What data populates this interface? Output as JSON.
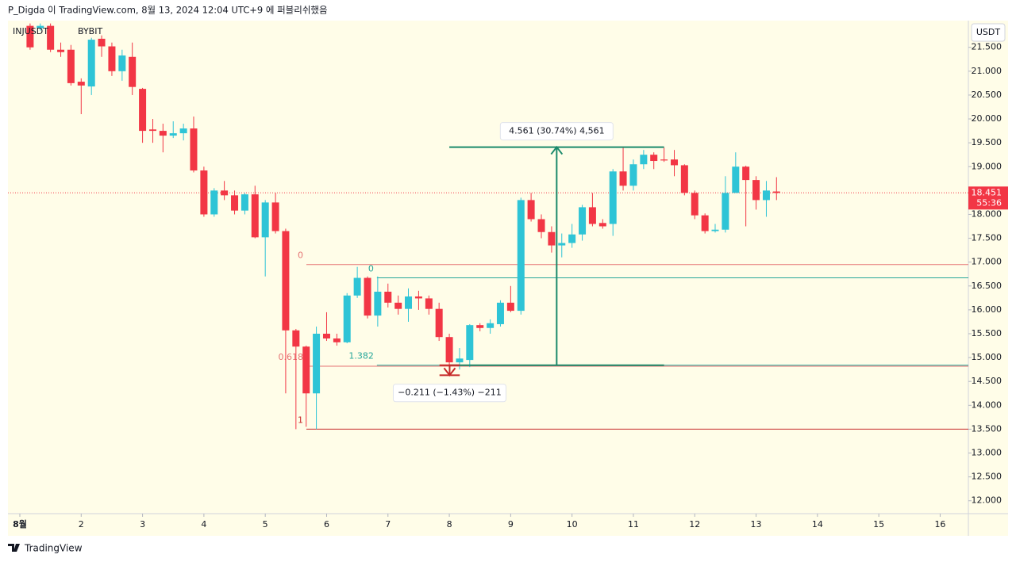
{
  "chart_data": {
    "type": "candlestick",
    "header": "P_Digda 이 TradingView.com, 8월 13, 2024 12:04 UTC+9 에 퍼블리쉬했음",
    "symbol": "INJUSDT",
    "exchange": "BYBIT",
    "currency": "USDT",
    "last_price": {
      "value": 18.451,
      "label": "18.451"
    },
    "countdown": "55:36",
    "brand": "TradingView",
    "up_color": "#2ec4d6",
    "down_color": "#f23645",
    "xlim": [
      0.806,
      16.46
    ],
    "xticks": [
      {
        "value": 1,
        "label": "8월"
      },
      2,
      3,
      4,
      5,
      6,
      7,
      8,
      9,
      10,
      11,
      12,
      13,
      14,
      15,
      16
    ],
    "ylim": [
      11.73,
      22.06
    ],
    "yticks": [
      {
        "value": 12,
        "label": "12.000"
      },
      {
        "value": 12.5,
        "label": "12.500"
      },
      {
        "value": 13,
        "label": "13.000"
      },
      {
        "value": 13.5,
        "label": "13.500"
      },
      {
        "value": 14,
        "label": "14.000"
      },
      {
        "value": 14.5,
        "label": "14.500"
      },
      {
        "value": 15,
        "label": "15.000"
      },
      {
        "value": 15.5,
        "label": "15.500"
      },
      {
        "value": 16,
        "label": "16.000"
      },
      {
        "value": 16.5,
        "label": "16.500"
      },
      {
        "value": 17,
        "label": "17.000"
      },
      {
        "value": 17.5,
        "label": "17.500"
      },
      {
        "value": 18,
        "label": "18.000"
      },
      {
        "value": 19,
        "label": "19.000"
      },
      {
        "value": 19.5,
        "label": "19.500"
      },
      {
        "value": 20,
        "label": "20.000"
      },
      {
        "value": 20.5,
        "label": "20.500"
      },
      {
        "value": 21,
        "label": "21.000"
      },
      {
        "value": 21.5,
        "label": "21.500"
      }
    ],
    "x": [
      1.167,
      1.333,
      1.5,
      1.667,
      1.833,
      2,
      2.167,
      2.333,
      2.5,
      2.667,
      2.833,
      3,
      3.167,
      3.333,
      3.5,
      3.667,
      3.833,
      4,
      4.167,
      4.333,
      4.5,
      4.667,
      4.833,
      5,
      5.167,
      5.333,
      5.5,
      5.667,
      5.833,
      6,
      6.167,
      6.333,
      6.5,
      6.667,
      6.833,
      7,
      7.167,
      7.333,
      7.5,
      7.667,
      7.833,
      8,
      8.167,
      8.333,
      8.5,
      8.667,
      8.833,
      9,
      9.167,
      9.333,
      9.5,
      9.667,
      9.833,
      10,
      10.167,
      10.333,
      10.5,
      10.667,
      10.833,
      11,
      11.167,
      11.333,
      11.5,
      11.667,
      11.833,
      12,
      12.167,
      12.333,
      12.5,
      12.667,
      12.833,
      13,
      13.167,
      13.333
    ],
    "open": [
      21.95,
      21.9,
      21.95,
      21.45,
      21.45,
      20.78,
      20.68,
      21.68,
      21.52,
      21.0,
      21.3,
      20.63,
      19.78,
      19.75,
      19.65,
      19.7,
      19.8,
      18.92,
      18.0,
      18.5,
      18.4,
      18.08,
      18.42,
      17.52,
      18.25,
      17.65,
      15.57,
      15.23,
      14.25,
      15.5,
      15.4,
      15.32,
      16.3,
      16.67,
      15.88,
      16.38,
      16.15,
      16.02,
      16.28,
      16.24,
      16.02,
      15.43,
      14.9,
      14.95,
      15.68,
      15.62,
      15.7,
      16.15,
      15.98,
      18.3,
      17.9,
      17.63,
      17.35,
      17.4,
      17.58,
      18.15,
      17.82,
      17.8,
      18.9,
      18.6,
      19.05,
      19.25,
      19.15,
      19.15,
      19.03,
      18.45,
      17.98,
      17.65,
      17.68,
      18.45,
      19.0,
      18.72,
      18.3,
      18.48
    ],
    "high": [
      22.0,
      22.0,
      22.0,
      21.6,
      21.55,
      20.85,
      21.7,
      21.75,
      21.6,
      21.45,
      21.6,
      20.65,
      20.0,
      19.9,
      19.95,
      19.9,
      20.05,
      19.0,
      18.55,
      18.7,
      18.5,
      18.45,
      18.6,
      18.3,
      18.45,
      17.7,
      15.6,
      15.25,
      15.65,
      15.95,
      15.5,
      16.35,
      16.9,
      16.7,
      16.7,
      16.55,
      16.3,
      16.45,
      16.4,
      16.3,
      16.15,
      15.5,
      15.2,
      15.7,
      15.72,
      15.8,
      16.2,
      16.5,
      18.35,
      18.45,
      18.0,
      17.75,
      17.6,
      17.8,
      18.2,
      18.45,
      17.9,
      18.95,
      19.4,
      19.15,
      19.35,
      19.3,
      19.4,
      19.35,
      19.05,
      18.5,
      18.02,
      17.8,
      18.8,
      19.3,
      19.02,
      18.8,
      18.7,
      18.78
    ],
    "low": [
      21.45,
      21.85,
      21.4,
      21.3,
      20.7,
      20.1,
      20.5,
      21.3,
      20.9,
      20.8,
      20.5,
      19.5,
      19.5,
      19.3,
      19.6,
      19.55,
      18.88,
      17.95,
      17.95,
      18.3,
      18.0,
      18.0,
      17.5,
      16.7,
      17.6,
      14.25,
      13.5,
      13.55,
      13.5,
      15.35,
      15.25,
      15.3,
      16.25,
      15.82,
      15.65,
      16.05,
      15.9,
      15.75,
      16.0,
      15.9,
      15.35,
      14.8,
      14.75,
      14.8,
      15.55,
      15.5,
      15.65,
      15.95,
      15.9,
      17.85,
      17.5,
      17.2,
      17.1,
      17.3,
      17.45,
      17.75,
      17.7,
      17.55,
      18.5,
      18.5,
      18.95,
      18.95,
      19.1,
      18.8,
      18.4,
      17.9,
      17.6,
      17.62,
      17.62,
      18.45,
      17.75,
      18.1,
      17.95,
      18.3
    ],
    "close": [
      21.5,
      21.95,
      21.45,
      21.4,
      20.75,
      20.7,
      21.66,
      21.52,
      21.0,
      21.33,
      20.67,
      19.75,
      19.75,
      19.65,
      19.7,
      19.8,
      18.92,
      18.0,
      18.5,
      18.4,
      18.08,
      18.42,
      17.52,
      18.25,
      17.65,
      15.57,
      15.23,
      14.25,
      15.5,
      15.4,
      15.32,
      16.3,
      16.67,
      15.88,
      16.38,
      16.15,
      16.02,
      16.28,
      16.24,
      16.02,
      15.43,
      14.9,
      14.98,
      15.68,
      15.62,
      15.72,
      16.15,
      15.98,
      18.3,
      17.9,
      17.63,
      17.35,
      17.4,
      17.58,
      18.15,
      17.8,
      17.75,
      18.9,
      18.6,
      19.05,
      19.25,
      19.12,
      19.13,
      19.03,
      18.45,
      17.98,
      17.65,
      17.68,
      18.45,
      19.0,
      18.72,
      18.3,
      18.5,
      18.45
    ],
    "levels": [
      {
        "label": "0",
        "value": 16.95,
        "x": 5.67,
        "color": "#e57373"
      },
      {
        "label": "0.618",
        "value": 14.82,
        "x": 5.67,
        "color": "#e57373"
      },
      {
        "label": "1",
        "value": 13.5,
        "x": 5.67,
        "color": "#c62828"
      },
      {
        "label": "0",
        "value": 16.67,
        "x": 6.82,
        "color": "#26a69a"
      },
      {
        "label": "1.382",
        "value": 14.84,
        "x": 6.82,
        "color": "#26a69a"
      }
    ],
    "measures": [
      {
        "label": "4.561 (30.74%) 4,561",
        "from": 14.84,
        "to": 19.41,
        "x": [
          8,
          11.5
        ],
        "color": "#1b8a6b"
      },
      {
        "label": "−0.211 (−1.43%) −211",
        "from": 14.84,
        "to": 14.63,
        "x": [
          7.84,
          8.17
        ],
        "color": "#c62828"
      }
    ]
  }
}
